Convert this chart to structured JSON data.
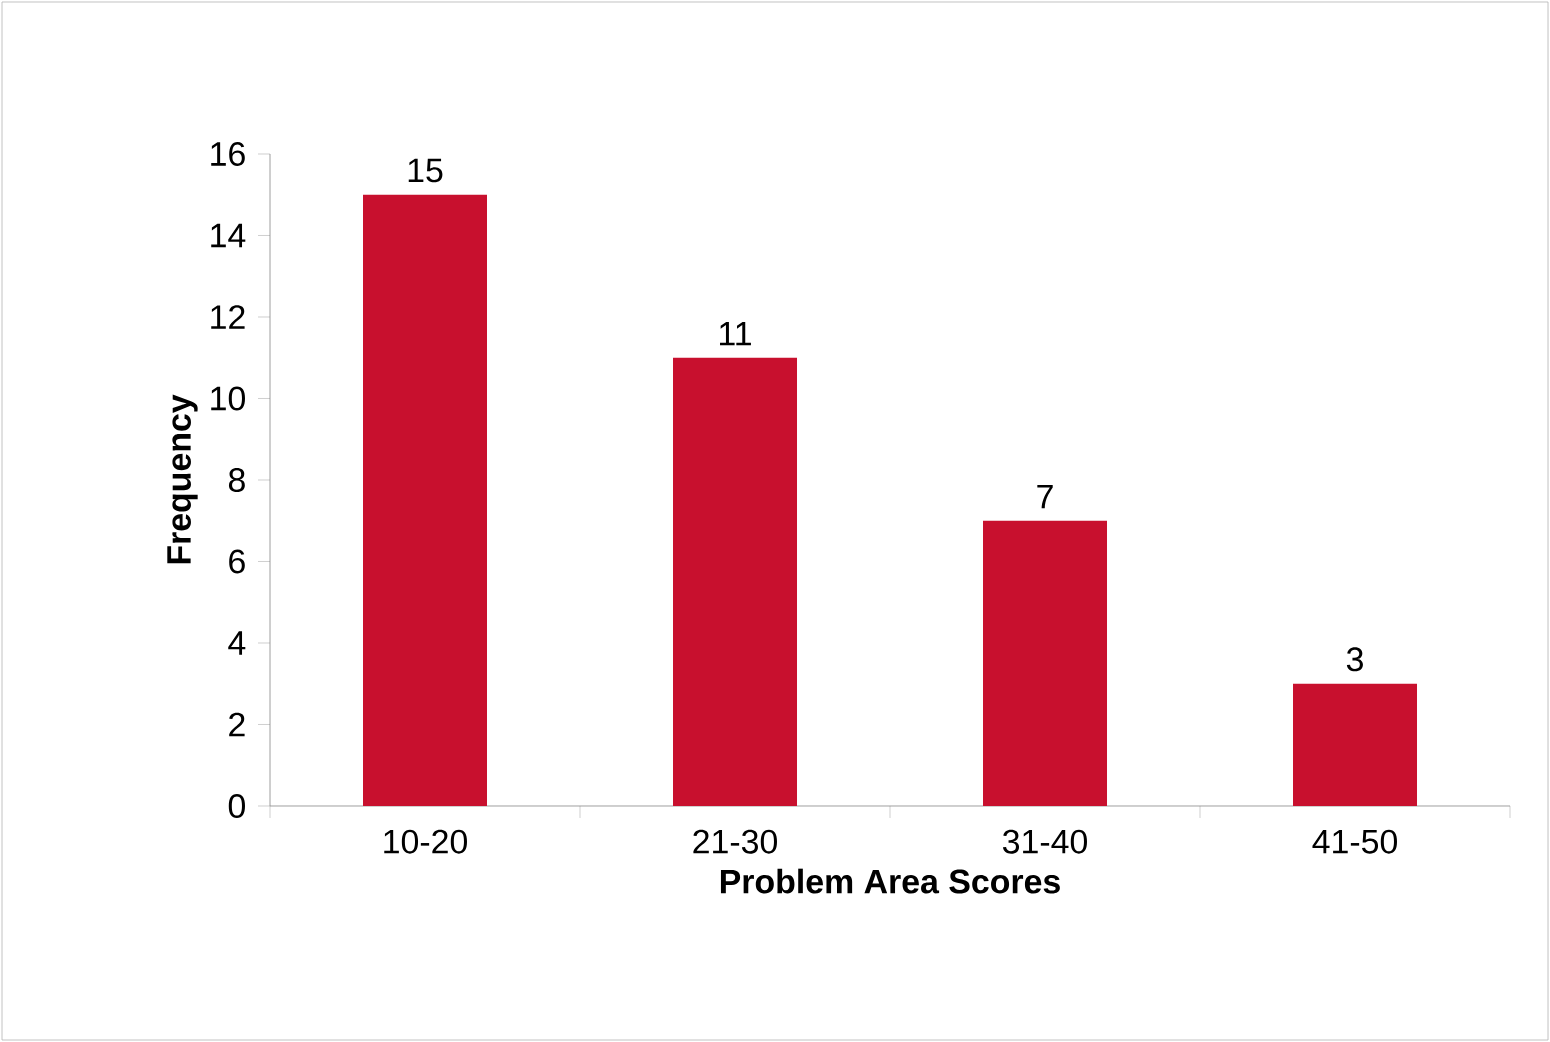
{
  "chart_data": {
    "type": "bar",
    "xlabel": "Problem Area Scores",
    "ylabel": "Frequency",
    "categories": [
      "10-20",
      "21-30",
      "31-40",
      "41-50"
    ],
    "values": [
      15,
      11,
      7,
      3
    ],
    "value_labels": [
      "15",
      "11",
      "7",
      "3"
    ],
    "color": "#c8102e",
    "ylim": [
      0,
      16
    ],
    "yticks": [
      0,
      2,
      4,
      6,
      8,
      10,
      12,
      14,
      16
    ]
  }
}
